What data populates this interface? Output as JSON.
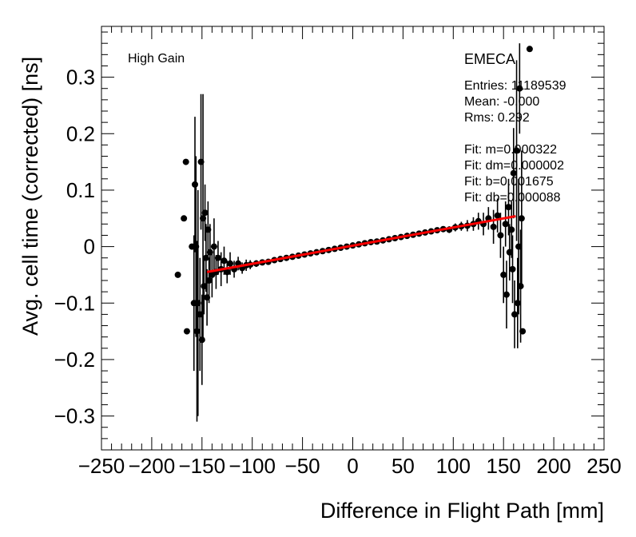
{
  "chart_data": {
    "type": "scatter",
    "xlabel": "Difference in Flight Path [mm]",
    "ylabel": "Avg. cell time (corrected) [ns]",
    "xlim": [
      -250,
      250
    ],
    "ylim": [
      -0.36,
      0.39
    ],
    "x_ticks": [
      -250,
      -200,
      -150,
      -100,
      -50,
      0,
      50,
      100,
      150,
      200,
      250
    ],
    "x_tick_labels": [
      "−250",
      "−200",
      "−150",
      "−100",
      "−50",
      "0",
      "50",
      "100",
      "150",
      "200",
      "250"
    ],
    "y_ticks": [
      -0.3,
      -0.2,
      -0.1,
      0,
      0.1,
      0.2,
      0.3
    ],
    "y_tick_labels": [
      "−0.3",
      "−0.2",
      "−0.1",
      "0",
      "0.1",
      "0.2",
      "0.3"
    ],
    "grid": false,
    "annotations": {
      "gain": "High Gain",
      "region": "EMECA",
      "stats": [
        "Entries: 11189539",
        "Mean: -0.000",
        "Rms: 0.292"
      ],
      "fit": [
        "Fit: m=0.000322",
        "Fit: dm=0.000002",
        "Fit: b=0.001675",
        "Fit: db=0.000088"
      ]
    },
    "fit_line": {
      "x_range": [
        -145,
        162
      ],
      "slope": 0.000322,
      "intercept": 0.001675,
      "color": "#ff0000"
    },
    "points": [
      {
        "x": -174,
        "y": -0.05,
        "err": 0.0
      },
      {
        "x": -168,
        "y": 0.05,
        "err": 0.0
      },
      {
        "x": -166,
        "y": 0.15,
        "err": 0.0
      },
      {
        "x": -165,
        "y": -0.15,
        "err": 0.0
      },
      {
        "x": -160,
        "y": 0.0,
        "err": 0.0
      },
      {
        "x": -158,
        "y": -0.1,
        "err": 0.12
      },
      {
        "x": -157,
        "y": 0.11,
        "err": 0.12
      },
      {
        "x": -156,
        "y": 0.0,
        "err": 0.16
      },
      {
        "x": -155,
        "y": -0.15,
        "err": 0.16
      },
      {
        "x": -154,
        "y": -0.1,
        "err": 0.2
      },
      {
        "x": -152,
        "y": -0.12,
        "err": 0.1
      },
      {
        "x": -151,
        "y": 0.15,
        "err": 0.12
      },
      {
        "x": -150,
        "y": -0.165,
        "err": 0.08
      },
      {
        "x": -149,
        "y": 0.05,
        "err": 0.22
      },
      {
        "x": -148,
        "y": -0.07,
        "err": 0.05
      },
      {
        "x": -147,
        "y": 0.06,
        "err": 0.05
      },
      {
        "x": -146,
        "y": -0.02,
        "err": 0.06
      },
      {
        "x": -145,
        "y": -0.09,
        "err": 0.05
      },
      {
        "x": -144,
        "y": 0.03,
        "err": 0.05
      },
      {
        "x": -143,
        "y": -0.06,
        "err": 0.04
      },
      {
        "x": -142,
        "y": -0.01,
        "err": 0.05
      },
      {
        "x": -140,
        "y": -0.05,
        "err": 0.04
      },
      {
        "x": -138,
        "y": 0.0,
        "err": 0.05
      },
      {
        "x": -136,
        "y": -0.045,
        "err": 0.03
      },
      {
        "x": -134,
        "y": -0.02,
        "err": 0.03
      },
      {
        "x": -131,
        "y": -0.04,
        "err": 0.03
      },
      {
        "x": -128,
        "y": -0.025,
        "err": 0.025
      },
      {
        "x": -125,
        "y": -0.045,
        "err": 0.02
      },
      {
        "x": -122,
        "y": -0.03,
        "err": 0.02
      },
      {
        "x": -118,
        "y": -0.04,
        "err": 0.015
      },
      {
        "x": -114,
        "y": -0.03,
        "err": 0.012
      },
      {
        "x": -110,
        "y": -0.038,
        "err": 0.01
      },
      {
        "x": -106,
        "y": -0.033,
        "err": 0.01
      },
      {
        "x": -102,
        "y": -0.032,
        "err": 0.008
      },
      {
        "x": -96,
        "y": -0.03,
        "err": 0.006
      },
      {
        "x": -90,
        "y": -0.028,
        "err": 0.005
      },
      {
        "x": -84,
        "y": -0.027,
        "err": 0.004
      },
      {
        "x": -78,
        "y": -0.024,
        "err": 0.004
      },
      {
        "x": -72,
        "y": -0.022,
        "err": 0.003
      },
      {
        "x": -66,
        "y": -0.02,
        "err": 0.003
      },
      {
        "x": -60,
        "y": -0.018,
        "err": 0.003
      },
      {
        "x": -54,
        "y": -0.016,
        "err": 0.003
      },
      {
        "x": -48,
        "y": -0.014,
        "err": 0.003
      },
      {
        "x": -42,
        "y": -0.012,
        "err": 0.003
      },
      {
        "x": -36,
        "y": -0.01,
        "err": 0.003
      },
      {
        "x": -30,
        "y": -0.008,
        "err": 0.003
      },
      {
        "x": -24,
        "y": -0.006,
        "err": 0.003
      },
      {
        "x": -18,
        "y": -0.004,
        "err": 0.003
      },
      {
        "x": -12,
        "y": -0.002,
        "err": 0.003
      },
      {
        "x": -6,
        "y": 0.0,
        "err": 0.003
      },
      {
        "x": 0,
        "y": 0.002,
        "err": 0.003
      },
      {
        "x": 6,
        "y": 0.004,
        "err": 0.003
      },
      {
        "x": 12,
        "y": 0.006,
        "err": 0.003
      },
      {
        "x": 18,
        "y": 0.008,
        "err": 0.003
      },
      {
        "x": 24,
        "y": 0.009,
        "err": 0.003
      },
      {
        "x": 30,
        "y": 0.011,
        "err": 0.003
      },
      {
        "x": 36,
        "y": 0.013,
        "err": 0.003
      },
      {
        "x": 42,
        "y": 0.015,
        "err": 0.003
      },
      {
        "x": 48,
        "y": 0.017,
        "err": 0.003
      },
      {
        "x": 54,
        "y": 0.019,
        "err": 0.003
      },
      {
        "x": 60,
        "y": 0.021,
        "err": 0.004
      },
      {
        "x": 66,
        "y": 0.023,
        "err": 0.004
      },
      {
        "x": 72,
        "y": 0.025,
        "err": 0.004
      },
      {
        "x": 78,
        "y": 0.027,
        "err": 0.004
      },
      {
        "x": 84,
        "y": 0.029,
        "err": 0.005
      },
      {
        "x": 90,
        "y": 0.031,
        "err": 0.005
      },
      {
        "x": 96,
        "y": 0.03,
        "err": 0.006
      },
      {
        "x": 102,
        "y": 0.034,
        "err": 0.007
      },
      {
        "x": 108,
        "y": 0.036,
        "err": 0.008
      },
      {
        "x": 114,
        "y": 0.037,
        "err": 0.01
      },
      {
        "x": 120,
        "y": 0.04,
        "err": 0.012
      },
      {
        "x": 125,
        "y": 0.045,
        "err": 0.015
      },
      {
        "x": 130,
        "y": 0.04,
        "err": 0.02
      },
      {
        "x": 135,
        "y": 0.05,
        "err": 0.02
      },
      {
        "x": 140,
        "y": 0.035,
        "err": 0.03
      },
      {
        "x": 144,
        "y": 0.055,
        "err": 0.03
      },
      {
        "x": 147,
        "y": 0.02,
        "err": 0.04
      },
      {
        "x": 150,
        "y": -0.05,
        "err": 0.05
      },
      {
        "x": 152,
        "y": 0.04,
        "err": 0.04
      },
      {
        "x": 153,
        "y": -0.085,
        "err": 0.06
      },
      {
        "x": 155,
        "y": 0.07,
        "err": 0.05
      },
      {
        "x": 156,
        "y": -0.01,
        "err": 0.05
      },
      {
        "x": 158,
        "y": 0.03,
        "err": 0.05
      },
      {
        "x": 159,
        "y": -0.04,
        "err": 0.06
      },
      {
        "x": 160,
        "y": 0.13,
        "err": 0.08
      },
      {
        "x": 161,
        "y": -0.12,
        "err": 0.06
      },
      {
        "x": 163,
        "y": 0.17,
        "err": 0.16
      },
      {
        "x": 164,
        "y": -0.1,
        "err": 0.08
      },
      {
        "x": 165,
        "y": 0.0,
        "err": 0.12
      },
      {
        "x": 166,
        "y": 0.28,
        "err": 0.08
      },
      {
        "x": 167,
        "y": -0.07,
        "err": 0.1
      },
      {
        "x": 168,
        "y": 0.05,
        "err": 0.12
      },
      {
        "x": 169,
        "y": -0.15,
        "err": 0.0
      },
      {
        "x": 176,
        "y": 0.35,
        "err": 0.0
      }
    ]
  }
}
